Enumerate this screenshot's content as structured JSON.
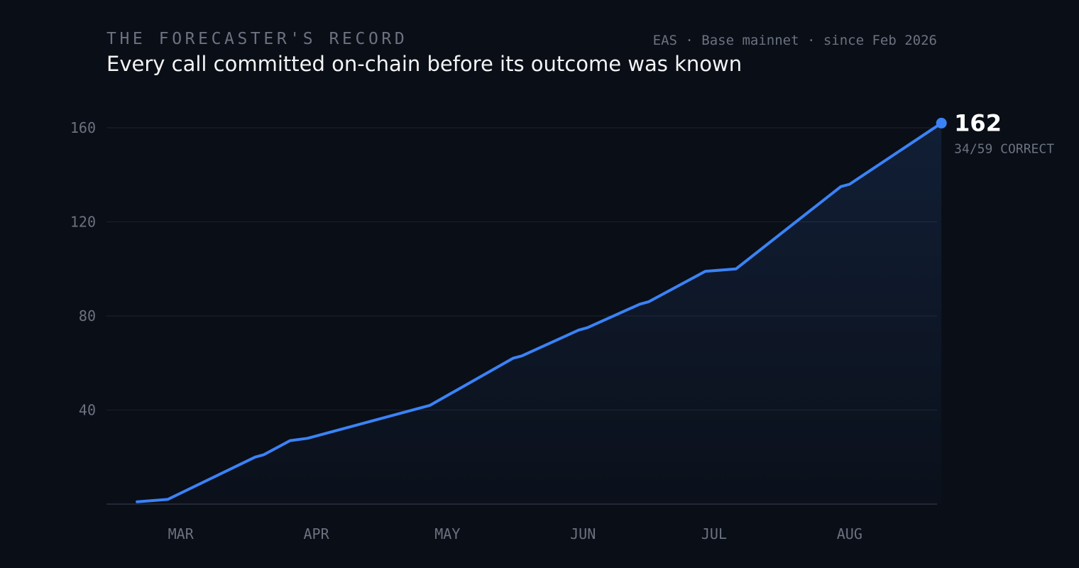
{
  "header": {
    "kicker": "THE FORECASTER'S RECORD",
    "title": "Every call committed on-chain before its outcome was known",
    "meta": "EAS · Base mainnet · since Feb 2026"
  },
  "colors": {
    "background": "#0a0e16",
    "line": "#3b82f6",
    "grid": "#1c2130",
    "text_muted": "#6b7280",
    "text_strong": "#ffffff"
  },
  "chart_data": {
    "type": "area",
    "title": "",
    "xlabel": "",
    "ylabel": "",
    "ylim": [
      0,
      160
    ],
    "xlim": [
      "2026-02-12",
      "2026-08-21"
    ],
    "grid": true,
    "yticks": [
      {
        "value": 40,
        "label": "40"
      },
      {
        "value": 80,
        "label": "80"
      },
      {
        "value": 120,
        "label": "120"
      },
      {
        "value": 160,
        "label": "160"
      }
    ],
    "xticks": [
      {
        "value": "2026-03-01",
        "label": "MAR"
      },
      {
        "value": "2026-04-01",
        "label": "APR"
      },
      {
        "value": "2026-05-01",
        "label": "MAY"
      },
      {
        "value": "2026-06-01",
        "label": "JUN"
      },
      {
        "value": "2026-07-01",
        "label": "JUL"
      },
      {
        "value": "2026-08-01",
        "label": "AUG"
      }
    ],
    "series": [
      {
        "points": [
          {
            "x": "2026-02-19",
            "y": 1
          },
          {
            "x": "2026-02-26",
            "y": 2
          },
          {
            "x": "2026-03-18",
            "y": 20
          },
          {
            "x": "2026-03-20",
            "y": 21
          },
          {
            "x": "2026-03-26",
            "y": 27
          },
          {
            "x": "2026-03-30",
            "y": 28
          },
          {
            "x": "2026-04-25",
            "y": 41
          },
          {
            "x": "2026-04-27",
            "y": 42
          },
          {
            "x": "2026-05-16",
            "y": 62
          },
          {
            "x": "2026-05-18",
            "y": 63
          },
          {
            "x": "2026-05-31",
            "y": 74
          },
          {
            "x": "2026-06-02",
            "y": 75
          },
          {
            "x": "2026-06-14",
            "y": 85
          },
          {
            "x": "2026-06-16",
            "y": 86
          },
          {
            "x": "2026-06-29",
            "y": 99
          },
          {
            "x": "2026-07-06",
            "y": 100
          },
          {
            "x": "2026-07-30",
            "y": 135
          },
          {
            "x": "2026-08-01",
            "y": 136
          },
          {
            "x": "2026-08-22",
            "y": 162
          }
        ]
      }
    ],
    "end_marker": {
      "value": "162",
      "caption": "34/59 CORRECT"
    }
  }
}
